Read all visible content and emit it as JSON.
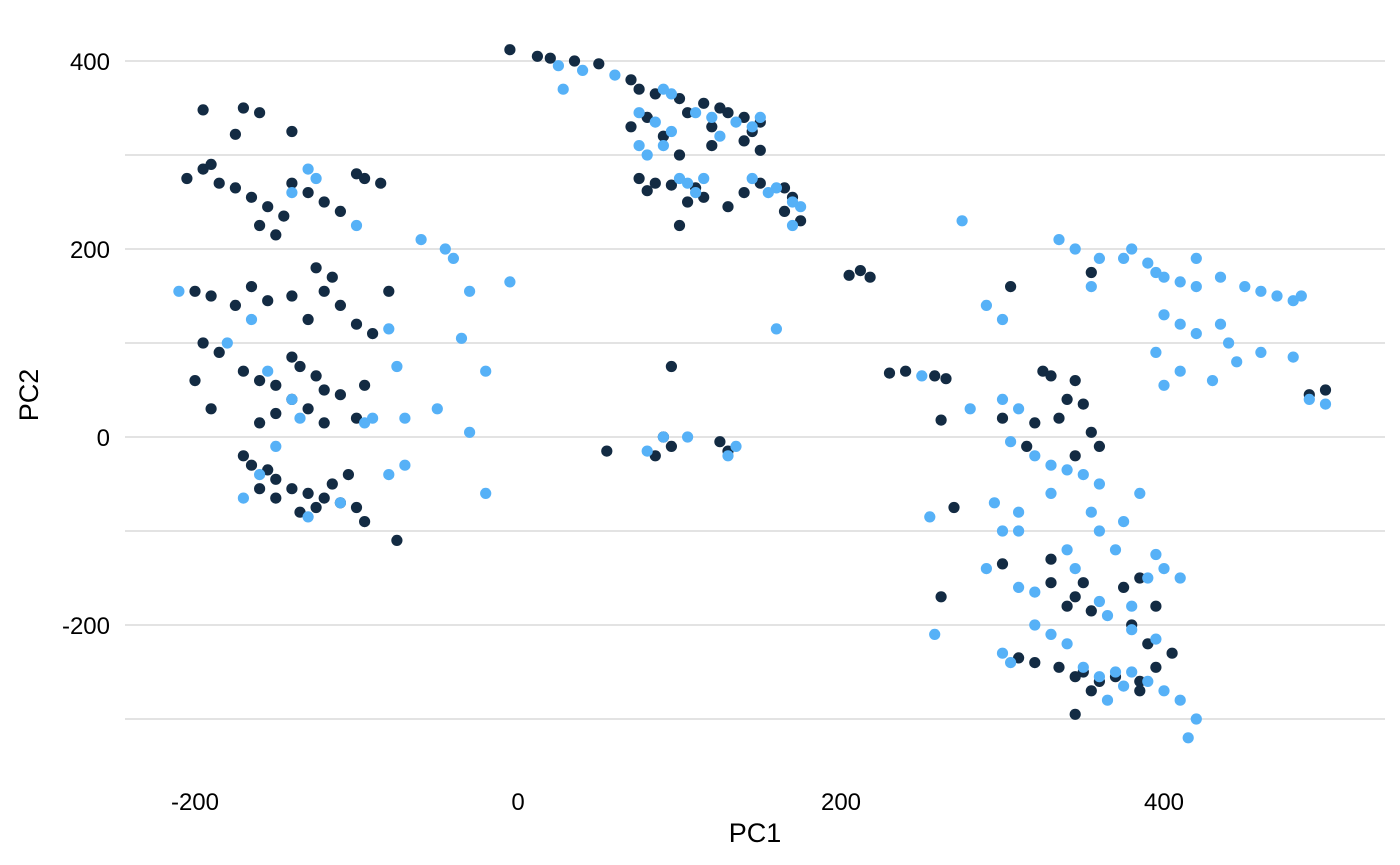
{
  "chart_data": {
    "type": "scatter",
    "title": "",
    "xlabel": "PC1",
    "ylabel": "PC2",
    "xlim": [
      -250,
      530
    ],
    "ylim": [
      -340,
      420
    ],
    "x_ticks": [
      -200,
      0,
      200,
      400
    ],
    "y_ticks": [
      -200,
      0,
      200,
      400
    ],
    "grid": "horizontal",
    "legend": "none",
    "series": [
      {
        "color": "#132b43",
        "points": [
          [
            -5,
            412
          ],
          [
            12,
            405
          ],
          [
            20,
            403
          ],
          [
            35,
            400
          ],
          [
            50,
            397
          ],
          [
            70,
            380
          ],
          [
            75,
            370
          ],
          [
            85,
            365
          ],
          [
            100,
            360
          ],
          [
            115,
            355
          ],
          [
            125,
            350
          ],
          [
            130,
            345
          ],
          [
            140,
            340
          ],
          [
            150,
            335
          ],
          [
            145,
            325
          ],
          [
            120,
            330
          ],
          [
            105,
            345
          ],
          [
            80,
            340
          ],
          [
            70,
            330
          ],
          [
            90,
            320
          ],
          [
            100,
            300
          ],
          [
            120,
            310
          ],
          [
            140,
            315
          ],
          [
            150,
            305
          ],
          [
            75,
            275
          ],
          [
            85,
            270
          ],
          [
            95,
            268
          ],
          [
            110,
            265
          ],
          [
            115,
            255
          ],
          [
            105,
            250
          ],
          [
            80,
            262
          ],
          [
            130,
            245
          ],
          [
            140,
            260
          ],
          [
            150,
            270
          ],
          [
            165,
            265
          ],
          [
            170,
            255
          ],
          [
            175,
            230
          ],
          [
            165,
            240
          ],
          [
            100,
            225
          ],
          [
            -205,
            275
          ],
          [
            -195,
            285
          ],
          [
            -185,
            270
          ],
          [
            -190,
            290
          ],
          [
            -175,
            265
          ],
          [
            -165,
            255
          ],
          [
            -155,
            245
          ],
          [
            -145,
            235
          ],
          [
            -160,
            225
          ],
          [
            -150,
            215
          ],
          [
            -140,
            270
          ],
          [
            -130,
            260
          ],
          [
            -120,
            250
          ],
          [
            -110,
            240
          ],
          [
            -100,
            280
          ],
          [
            -95,
            275
          ],
          [
            -85,
            270
          ],
          [
            -170,
            350
          ],
          [
            -160,
            345
          ],
          [
            -140,
            325
          ],
          [
            -175,
            322
          ],
          [
            -195,
            348
          ],
          [
            -200,
            155
          ],
          [
            -190,
            150
          ],
          [
            -175,
            140
          ],
          [
            -165,
            160
          ],
          [
            -155,
            145
          ],
          [
            -140,
            150
          ],
          [
            -125,
            180
          ],
          [
            -115,
            170
          ],
          [
            -120,
            155
          ],
          [
            -110,
            140
          ],
          [
            -130,
            125
          ],
          [
            -100,
            120
          ],
          [
            -90,
            110
          ],
          [
            -80,
            155
          ],
          [
            -195,
            100
          ],
          [
            -185,
            90
          ],
          [
            -170,
            70
          ],
          [
            -160,
            60
          ],
          [
            -150,
            55
          ],
          [
            -140,
            85
          ],
          [
            -135,
            75
          ],
          [
            -125,
            65
          ],
          [
            -120,
            50
          ],
          [
            -110,
            45
          ],
          [
            -130,
            30
          ],
          [
            -140,
            40
          ],
          [
            -150,
            25
          ],
          [
            -160,
            15
          ],
          [
            -120,
            15
          ],
          [
            -100,
            20
          ],
          [
            -95,
            55
          ],
          [
            -200,
            60
          ],
          [
            -190,
            30
          ],
          [
            -170,
            -20
          ],
          [
            -165,
            -30
          ],
          [
            -155,
            -35
          ],
          [
            -150,
            -45
          ],
          [
            -140,
            -55
          ],
          [
            -130,
            -60
          ],
          [
            -120,
            -65
          ],
          [
            -110,
            -70
          ],
          [
            -100,
            -75
          ],
          [
            -95,
            -90
          ],
          [
            -160,
            -55
          ],
          [
            -150,
            -65
          ],
          [
            -135,
            -80
          ],
          [
            -125,
            -75
          ],
          [
            -115,
            -50
          ],
          [
            -105,
            -40
          ],
          [
            -75,
            -110
          ],
          [
            95,
            75
          ],
          [
            55,
            -15
          ],
          [
            85,
            -20
          ],
          [
            95,
            -10
          ],
          [
            90,
            0
          ],
          [
            125,
            -5
          ],
          [
            130,
            -15
          ],
          [
            205,
            172
          ],
          [
            212,
            177
          ],
          [
            218,
            170
          ],
          [
            230,
            68
          ],
          [
            240,
            70
          ],
          [
            258,
            65
          ],
          [
            265,
            62
          ],
          [
            262,
            18
          ],
          [
            270,
            -75
          ],
          [
            262,
            -170
          ],
          [
            305,
            160
          ],
          [
            355,
            175
          ],
          [
            325,
            70
          ],
          [
            330,
            65
          ],
          [
            345,
            60
          ],
          [
            340,
            40
          ],
          [
            350,
            35
          ],
          [
            335,
            20
          ],
          [
            320,
            15
          ],
          [
            355,
            5
          ],
          [
            360,
            -10
          ],
          [
            345,
            -20
          ],
          [
            315,
            -10
          ],
          [
            300,
            20
          ],
          [
            300,
            -135
          ],
          [
            330,
            -130
          ],
          [
            350,
            -155
          ],
          [
            345,
            -170
          ],
          [
            340,
            -180
          ],
          [
            330,
            -155
          ],
          [
            355,
            -185
          ],
          [
            375,
            -160
          ],
          [
            385,
            -150
          ],
          [
            395,
            -180
          ],
          [
            310,
            -235
          ],
          [
            320,
            -240
          ],
          [
            335,
            -245
          ],
          [
            350,
            -250
          ],
          [
            360,
            -260
          ],
          [
            345,
            -255
          ],
          [
            355,
            -270
          ],
          [
            370,
            -255
          ],
          [
            385,
            -270
          ],
          [
            395,
            -245
          ],
          [
            405,
            -230
          ],
          [
            390,
            -220
          ],
          [
            380,
            -200
          ],
          [
            345,
            -295
          ],
          [
            385,
            -260
          ],
          [
            490,
            45
          ],
          [
            500,
            50
          ]
        ]
      },
      {
        "color": "#56b1f7",
        "points": [
          [
            25,
            395
          ],
          [
            28,
            370
          ],
          [
            40,
            390
          ],
          [
            60,
            385
          ],
          [
            90,
            370
          ],
          [
            95,
            365
          ],
          [
            110,
            345
          ],
          [
            120,
            340
          ],
          [
            125,
            320
          ],
          [
            135,
            335
          ],
          [
            145,
            330
          ],
          [
            150,
            340
          ],
          [
            75,
            345
          ],
          [
            85,
            335
          ],
          [
            95,
            325
          ],
          [
            75,
            310
          ],
          [
            80,
            300
          ],
          [
            90,
            310
          ],
          [
            100,
            275
          ],
          [
            105,
            270
          ],
          [
            110,
            260
          ],
          [
            115,
            275
          ],
          [
            145,
            275
          ],
          [
            160,
            265
          ],
          [
            155,
            260
          ],
          [
            170,
            250
          ],
          [
            175,
            245
          ],
          [
            170,
            225
          ],
          [
            -210,
            155
          ],
          [
            -130,
            285
          ],
          [
            -125,
            275
          ],
          [
            -140,
            260
          ],
          [
            -100,
            225
          ],
          [
            -80,
            115
          ],
          [
            -75,
            75
          ],
          [
            -60,
            210
          ],
          [
            -45,
            200
          ],
          [
            -40,
            190
          ],
          [
            -30,
            155
          ],
          [
            -35,
            105
          ],
          [
            -20,
            70
          ],
          [
            -50,
            30
          ],
          [
            -70,
            20
          ],
          [
            -80,
            -40
          ],
          [
            -70,
            -30
          ],
          [
            -30,
            5
          ],
          [
            -20,
            -60
          ],
          [
            -5,
            165
          ],
          [
            -180,
            100
          ],
          [
            -165,
            125
          ],
          [
            -155,
            70
          ],
          [
            -140,
            40
          ],
          [
            -135,
            20
          ],
          [
            -150,
            -10
          ],
          [
            -160,
            -40
          ],
          [
            -170,
            -65
          ],
          [
            -130,
            -85
          ],
          [
            -110,
            -70
          ],
          [
            -95,
            15
          ],
          [
            -90,
            20
          ],
          [
            80,
            -15
          ],
          [
            90,
            0
          ],
          [
            105,
            0
          ],
          [
            135,
            -10
          ],
          [
            130,
            -20
          ],
          [
            160,
            115
          ],
          [
            275,
            230
          ],
          [
            250,
            65
          ],
          [
            255,
            -85
          ],
          [
            258,
            -210
          ],
          [
            280,
            30
          ],
          [
            290,
            140
          ],
          [
            300,
            125
          ],
          [
            295,
            -70
          ],
          [
            290,
            -140
          ],
          [
            310,
            -100
          ],
          [
            335,
            210
          ],
          [
            345,
            200
          ],
          [
            360,
            190
          ],
          [
            375,
            190
          ],
          [
            390,
            185
          ],
          [
            395,
            175
          ],
          [
            400,
            170
          ],
          [
            410,
            165
          ],
          [
            420,
            160
          ],
          [
            435,
            170
          ],
          [
            450,
            160
          ],
          [
            460,
            155
          ],
          [
            470,
            150
          ],
          [
            480,
            145
          ],
          [
            485,
            150
          ],
          [
            400,
            130
          ],
          [
            410,
            120
          ],
          [
            420,
            110
          ],
          [
            395,
            90
          ],
          [
            410,
            70
          ],
          [
            430,
            60
          ],
          [
            445,
            80
          ],
          [
            400,
            55
          ],
          [
            355,
            160
          ],
          [
            380,
            200
          ],
          [
            420,
            190
          ],
          [
            435,
            120
          ],
          [
            440,
            100
          ],
          [
            460,
            90
          ],
          [
            480,
            85
          ],
          [
            490,
            40
          ],
          [
            500,
            35
          ],
          [
            300,
            40
          ],
          [
            310,
            30
          ],
          [
            305,
            -5
          ],
          [
            320,
            -20
          ],
          [
            330,
            -30
          ],
          [
            340,
            -35
          ],
          [
            350,
            -40
          ],
          [
            360,
            -50
          ],
          [
            355,
            -80
          ],
          [
            360,
            -100
          ],
          [
            370,
            -120
          ],
          [
            385,
            -60
          ],
          [
            375,
            -90
          ],
          [
            330,
            -60
          ],
          [
            310,
            -80
          ],
          [
            300,
            -100
          ],
          [
            340,
            -120
          ],
          [
            345,
            -140
          ],
          [
            310,
            -160
          ],
          [
            320,
            -165
          ],
          [
            360,
            -175
          ],
          [
            365,
            -190
          ],
          [
            380,
            -205
          ],
          [
            395,
            -215
          ],
          [
            400,
            -140
          ],
          [
            410,
            -150
          ],
          [
            320,
            -200
          ],
          [
            330,
            -210
          ],
          [
            340,
            -220
          ],
          [
            300,
            -230
          ],
          [
            305,
            -240
          ],
          [
            350,
            -245
          ],
          [
            360,
            -255
          ],
          [
            370,
            -250
          ],
          [
            380,
            -250
          ],
          [
            390,
            -260
          ],
          [
            400,
            -270
          ],
          [
            410,
            -280
          ],
          [
            420,
            -300
          ],
          [
            415,
            -320
          ],
          [
            365,
            -280
          ],
          [
            375,
            -265
          ],
          [
            395,
            -125
          ],
          [
            380,
            -180
          ],
          [
            390,
            -150
          ]
        ]
      }
    ]
  }
}
